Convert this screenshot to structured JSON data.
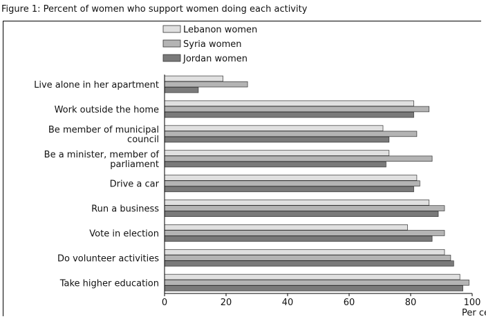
{
  "figure_title": "Figure 1: Percent of women who support women doing each activity",
  "chart_data": {
    "type": "bar",
    "orientation": "horizontal",
    "title": "Figure 1: Percent of women who support women doing each activity",
    "xlabel": "Per cent",
    "ylabel": "",
    "xlim": [
      0,
      100
    ],
    "xticks": [
      0,
      20,
      40,
      60,
      80,
      100
    ],
    "legend_position": "top-left",
    "grid": false,
    "categories": [
      [
        "Live alone in her apartment"
      ],
      [
        "Work outside the home"
      ],
      [
        "Be member of municipal",
        "council"
      ],
      [
        "Be a minister, member of",
        "parliament"
      ],
      [
        "Drive a car"
      ],
      [
        "Run a business"
      ],
      [
        "Vote in election"
      ],
      [
        "Do volunteer activities"
      ],
      [
        "Take higher education"
      ]
    ],
    "series": [
      {
        "name": "Lebanon women",
        "color": "#e0e0e0",
        "values": [
          19,
          81,
          71,
          73,
          82,
          86,
          79,
          91,
          96
        ]
      },
      {
        "name": "Syria women",
        "color": "#b4b4b4",
        "values": [
          27,
          86,
          82,
          87,
          83,
          91,
          91,
          93,
          99
        ]
      },
      {
        "name": "Jordan women",
        "color": "#7a7a7a",
        "values": [
          11,
          81,
          73,
          72,
          81,
          89,
          87,
          94,
          97
        ]
      }
    ]
  }
}
